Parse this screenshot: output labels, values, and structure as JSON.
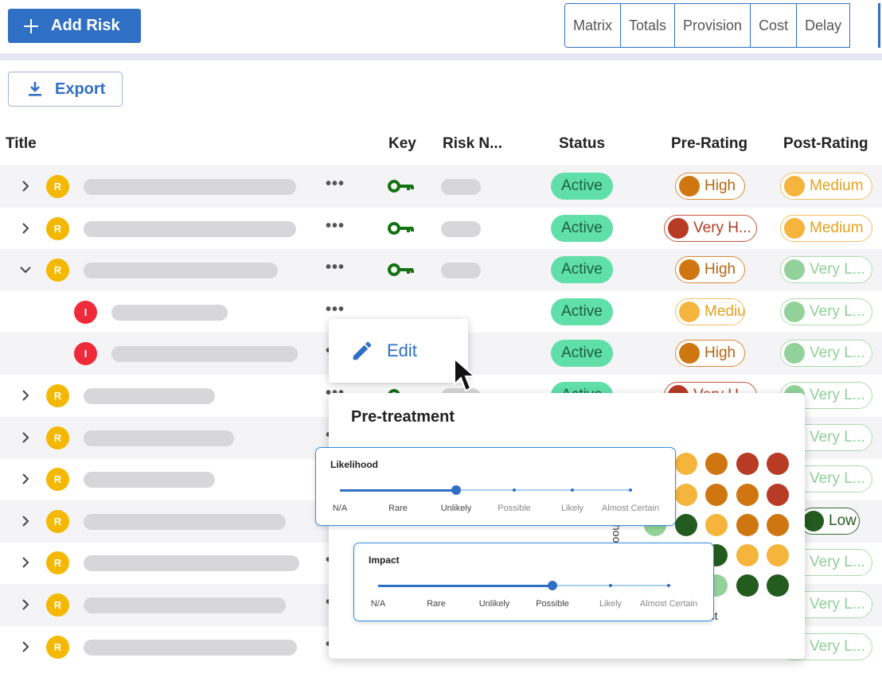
{
  "toolbar": {
    "add_label": "Add Risk",
    "export_label": "Export",
    "views": [
      "Matrix",
      "Totals",
      "Provision",
      "Cost",
      "Delay"
    ]
  },
  "table": {
    "columns": {
      "title": "Title",
      "key": "Key",
      "risk_number": "Risk N...",
      "status": "Status",
      "pre_rating": "Pre-Rating",
      "post_rating": "Post-Rating"
    },
    "rows": [
      {
        "avatar": "R",
        "status": "Active",
        "pre": "High",
        "post": "Medium"
      },
      {
        "avatar": "R",
        "status": "Active",
        "pre": "Very H...",
        "post": "Medium"
      },
      {
        "avatar": "R",
        "status": "Active",
        "pre": "High",
        "post": "Very L..."
      },
      {
        "avatar": "I",
        "status": "Active",
        "pre": "Medium",
        "post": "Very L..."
      },
      {
        "avatar": "I",
        "status": "Active",
        "pre": "High",
        "post": "Very L..."
      },
      {
        "avatar": "R",
        "status": "Active",
        "pre": "Very H...",
        "post": "Very L..."
      },
      {
        "avatar": "R",
        "status": "",
        "pre": "",
        "post": "Very L..."
      },
      {
        "avatar": "R",
        "status": "",
        "pre": "",
        "post": "Very L..."
      },
      {
        "avatar": "R",
        "status": "",
        "pre": "",
        "post": "Low"
      },
      {
        "avatar": "R",
        "status": "",
        "pre": "",
        "post": "Very L..."
      },
      {
        "avatar": "R",
        "status": "",
        "pre": "",
        "post": "Very L..."
      },
      {
        "avatar": "R",
        "status": "",
        "pre": "",
        "post": "Very L..."
      }
    ]
  },
  "context_menu": {
    "edit_label": "Edit"
  },
  "matrix": {
    "title": "Pre-treatment",
    "y_axis_fragment": "hoo",
    "x_axis_fragment": "act"
  },
  "likelihood": {
    "title": "Likelihood",
    "options": [
      "N/A",
      "Rare",
      "Unlikely",
      "Possible",
      "Likely",
      "Almost Certain"
    ],
    "selected": "Unlikely"
  },
  "impact": {
    "title": "Impact",
    "options": [
      "N/A",
      "Rare",
      "Unlikely",
      "Possible",
      "Likely",
      "Almost Certain"
    ],
    "selected": "Possible"
  },
  "colors": {
    "primary": "#2f6fc4",
    "active_status": "#60dfa9",
    "very_high": "#b73b25",
    "high": "#cf7611",
    "medium": "#f5b43c",
    "low": "#245b1f",
    "very_low": "#93d19a",
    "incident": "#ef2b3a",
    "risk": "#f5b800"
  }
}
